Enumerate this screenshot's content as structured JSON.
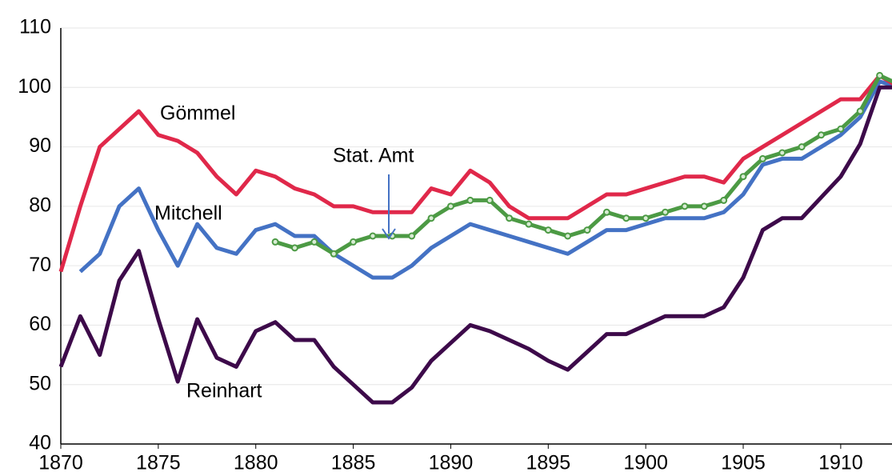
{
  "chart_data": {
    "type": "line",
    "x": [
      1870,
      1871,
      1872,
      1873,
      1874,
      1875,
      1876,
      1877,
      1878,
      1879,
      1880,
      1881,
      1882,
      1883,
      1884,
      1885,
      1886,
      1887,
      1888,
      1889,
      1890,
      1891,
      1892,
      1893,
      1894,
      1895,
      1896,
      1897,
      1898,
      1899,
      1900,
      1901,
      1902,
      1903,
      1904,
      1905,
      1906,
      1907,
      1908,
      1909,
      1910,
      1911,
      1912,
      1913
    ],
    "series": [
      {
        "name": "Gömmel",
        "color": "#e0284a",
        "values": [
          69,
          80,
          90,
          93,
          96,
          92,
          91,
          89,
          85,
          82,
          86,
          85,
          83,
          82,
          80,
          80,
          79,
          79,
          79,
          83,
          82,
          86,
          84,
          80,
          78,
          78,
          78,
          80,
          82,
          82,
          83,
          84,
          85,
          85,
          84,
          88,
          90,
          92,
          94,
          96,
          98,
          98,
          102,
          100
        ]
      },
      {
        "name": "Mitchell",
        "color": "#4472c4",
        "values": [
          null,
          69,
          72,
          80,
          83,
          76,
          70,
          77,
          73,
          72,
          76,
          77,
          75,
          75,
          72,
          70,
          68,
          68,
          70,
          73,
          75,
          77,
          76,
          75,
          74,
          73,
          72,
          74,
          76,
          76,
          77,
          78,
          78,
          78,
          79,
          82,
          87,
          88,
          88,
          90,
          92,
          95,
          101,
          100
        ]
      },
      {
        "name": "Reinhart",
        "color": "#3d0a4a",
        "values": [
          53,
          61.5,
          55,
          67.5,
          72.5,
          61,
          50.5,
          61,
          54.5,
          53,
          59,
          60.5,
          57.5,
          57.5,
          53,
          50,
          47,
          47,
          49.5,
          54,
          57,
          60,
          59,
          57.5,
          56,
          54,
          52.5,
          55.5,
          58.5,
          58.5,
          60,
          61.5,
          61.5,
          61.5,
          63,
          68,
          76,
          78,
          78,
          81.5,
          85,
          90.5,
          100,
          100
        ]
      },
      {
        "name": "Stat. Amt",
        "color": "#4c9a44",
        "markers": true,
        "values": [
          null,
          null,
          null,
          null,
          null,
          null,
          null,
          null,
          null,
          null,
          null,
          74,
          73,
          74,
          72,
          74,
          75,
          75,
          75,
          78,
          80,
          81,
          81,
          78,
          77,
          76,
          75,
          76,
          79,
          78,
          78,
          79,
          80,
          80,
          81,
          85,
          88,
          89,
          90,
          92,
          93,
          96,
          102,
          100.5
        ]
      }
    ],
    "xlim": [
      1870,
      1913
    ],
    "xticks": [
      1870,
      1875,
      1880,
      1885,
      1890,
      1895,
      1900,
      1905,
      1910
    ],
    "ylim": [
      40,
      110
    ],
    "yticks": [
      40,
      50,
      60,
      70,
      80,
      90,
      100,
      110
    ],
    "grid": true
  }
}
